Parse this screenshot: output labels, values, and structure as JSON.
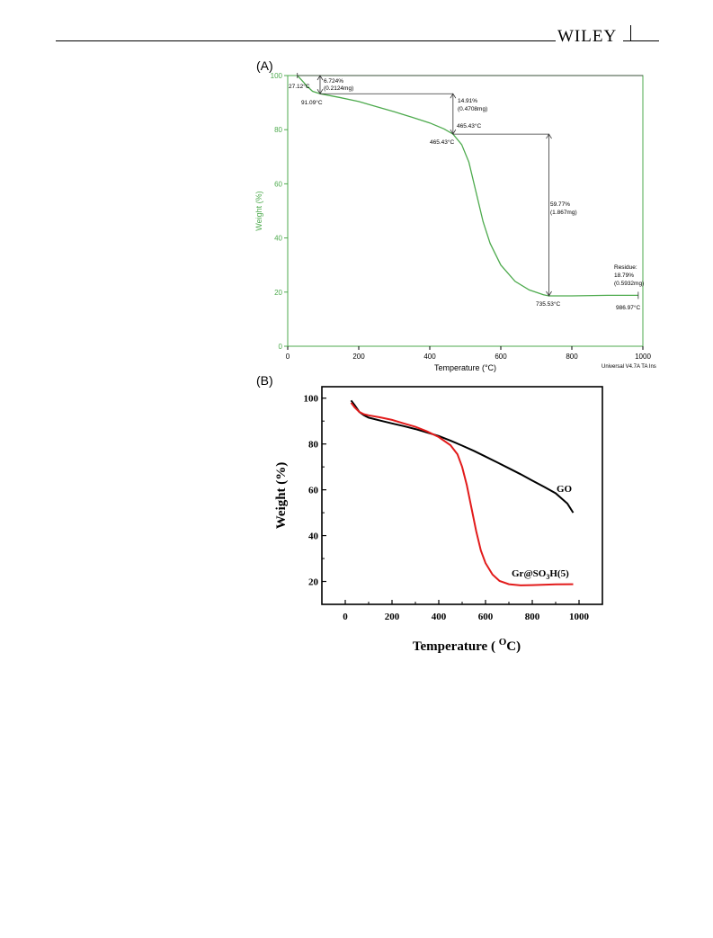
{
  "header": {
    "publisher": "WILEY"
  },
  "panels": {
    "a": "(A)",
    "b": "(B)"
  },
  "colors": {
    "tga_green": "#4daa4d",
    "go_black": "#000000",
    "gr_red": "#e21b1b"
  },
  "chart_data": [
    {
      "panel": "(A)",
      "type": "line",
      "xlabel": "Temperature (°C)",
      "ylabel": "Weight (%)",
      "xlim": [
        0,
        1000
      ],
      "ylim": [
        0,
        100
      ],
      "xticks": [
        0,
        200,
        400,
        600,
        800,
        1000
      ],
      "yticks": [
        0,
        20,
        40,
        60,
        80,
        100
      ],
      "footer": "Universal V4.7A TA Ins",
      "series": [
        {
          "color": "#4daa4d",
          "x": [
            27.12,
            40,
            55,
            70,
            91.09,
            150,
            200,
            250,
            300,
            350,
            400,
            440,
            465.43,
            490,
            510,
            530,
            550,
            570,
            600,
            640,
            680,
            720,
            735.53,
            800,
            900,
            986.97
          ],
          "y": [
            100,
            98.2,
            96,
            94.2,
            93.28,
            91.8,
            90.4,
            88.5,
            86.6,
            84.6,
            82.5,
            80.3,
            78.37,
            74.5,
            68,
            57,
            46,
            38,
            30,
            24,
            20.8,
            19,
            18.6,
            18.6,
            18.8,
            18.79
          ]
        }
      ],
      "annotations": [
        {
          "text": "27.12°C"
        },
        {
          "text": "6.724%"
        },
        {
          "text": "(0.2124mg)"
        },
        {
          "text": "91.09°C"
        },
        {
          "text": "14.91%"
        },
        {
          "text": "(0.4708mg)"
        },
        {
          "text": "465.43°C"
        },
        {
          "text": "465.43°C"
        },
        {
          "text": "59.77%"
        },
        {
          "text": "(1.867mg)"
        },
        {
          "text": "735.53°C"
        },
        {
          "text": "Residue:"
        },
        {
          "text": "18.79%"
        },
        {
          "text": "(0.5932mg)"
        },
        {
          "text": "986.97°C"
        }
      ]
    },
    {
      "panel": "(B)",
      "type": "line",
      "xlabel": "Temperature ( OC)",
      "ylabel": "Weight (%)",
      "xlim": [
        -100,
        1100
      ],
      "ylim": [
        10,
        105
      ],
      "xticks": [
        0,
        200,
        400,
        600,
        800,
        1000
      ],
      "yticks": [
        20,
        40,
        60,
        80,
        100
      ],
      "series": [
        {
          "name": "GO",
          "color": "#000000",
          "x": [
            25,
            40,
            60,
            80,
            100,
            150,
            200,
            250,
            300,
            350,
            400,
            450,
            500,
            550,
            600,
            650,
            700,
            750,
            800,
            850,
            900,
            950,
            975
          ],
          "y": [
            99,
            97,
            94,
            92.5,
            91.5,
            90.2,
            89,
            87.8,
            86.5,
            85,
            83.5,
            81.5,
            79.3,
            77,
            74.5,
            72,
            69.4,
            66.8,
            64,
            61.3,
            58.5,
            54,
            50
          ]
        },
        {
          "name": "Gr@SO3H(5)",
          "color": "#e21b1b",
          "x": [
            25,
            40,
            60,
            80,
            100,
            150,
            200,
            250,
            300,
            350,
            400,
            450,
            480,
            500,
            520,
            540,
            560,
            580,
            600,
            630,
            660,
            700,
            750,
            800,
            900,
            975
          ],
          "y": [
            98,
            96,
            94,
            93,
            92.5,
            91.6,
            90.5,
            89,
            87.5,
            85.5,
            83,
            79.5,
            75.5,
            70,
            62,
            52,
            42,
            33.5,
            28,
            23,
            20.2,
            18.8,
            18.3,
            18.4,
            18.7,
            18.8
          ]
        }
      ]
    }
  ]
}
